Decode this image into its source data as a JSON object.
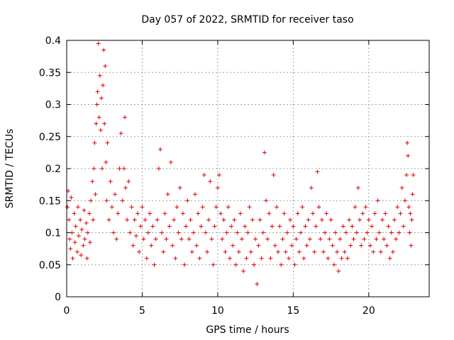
{
  "chart_data": {
    "type": "scatter",
    "title": "Day 057 of 2022, SRMTID for receiver taso",
    "xlabel": "GPS time / hours",
    "ylabel": "SRMTID / TECUs",
    "xlim": [
      0,
      24
    ],
    "ylim": [
      0,
      0.4
    ],
    "x_ticks": [
      "0",
      "5",
      "10",
      "15",
      "20"
    ],
    "y_ticks": [
      "0",
      "0.05",
      "0.1",
      "0.15",
      "0.2",
      "0.25",
      "0.3",
      "0.35",
      "0.4"
    ],
    "grid": true,
    "marker": "plus",
    "color": "#e00000",
    "series": [
      {
        "name": "SRMTID",
        "points": [
          [
            0.05,
            0.14
          ],
          [
            0.1,
            0.165
          ],
          [
            0.15,
            0.12
          ],
          [
            0.2,
            0.09
          ],
          [
            0.25,
            0.075
          ],
          [
            0.3,
            0.155
          ],
          [
            0.35,
            0.1
          ],
          [
            0.4,
            0.06
          ],
          [
            0.5,
            0.13
          ],
          [
            0.55,
            0.085
          ],
          [
            0.6,
            0.11
          ],
          [
            0.7,
            0.07
          ],
          [
            0.75,
            0.14
          ],
          [
            0.8,
            0.095
          ],
          [
            0.9,
            0.12
          ],
          [
            0.95,
            0.065
          ],
          [
            1.0,
            0.105
          ],
          [
            1.1,
            0.08
          ],
          [
            1.15,
            0.135
          ],
          [
            1.2,
            0.09
          ],
          [
            1.3,
            0.115
          ],
          [
            1.35,
            0.06
          ],
          [
            1.4,
            0.1
          ],
          [
            1.5,
            0.13
          ],
          [
            1.55,
            0.085
          ],
          [
            1.6,
            0.15
          ],
          [
            1.7,
            0.18
          ],
          [
            1.75,
            0.12
          ],
          [
            1.8,
            0.2
          ],
          [
            1.85,
            0.24
          ],
          [
            1.9,
            0.16
          ],
          [
            1.95,
            0.27
          ],
          [
            2.0,
            0.3
          ],
          [
            2.05,
            0.32
          ],
          [
            2.1,
            0.395
          ],
          [
            2.15,
            0.28
          ],
          [
            2.2,
            0.345
          ],
          [
            2.25,
            0.26
          ],
          [
            2.3,
            0.31
          ],
          [
            2.35,
            0.2
          ],
          [
            2.4,
            0.33
          ],
          [
            2.45,
            0.385
          ],
          [
            2.5,
            0.27
          ],
          [
            2.55,
            0.36
          ],
          [
            2.6,
            0.21
          ],
          [
            2.65,
            0.15
          ],
          [
            2.7,
            0.24
          ],
          [
            2.8,
            0.12
          ],
          [
            2.9,
            0.18
          ],
          [
            3.0,
            0.14
          ],
          [
            3.1,
            0.1
          ],
          [
            3.2,
            0.16
          ],
          [
            3.3,
            0.09
          ],
          [
            3.4,
            0.13
          ],
          [
            3.5,
            0.2
          ],
          [
            3.6,
            0.255
          ],
          [
            3.7,
            0.15
          ],
          [
            3.8,
            0.2
          ],
          [
            3.85,
            0.28
          ],
          [
            3.9,
            0.17
          ],
          [
            4.0,
            0.12
          ],
          [
            4.1,
            0.18
          ],
          [
            4.2,
            0.1
          ],
          [
            4.3,
            0.14
          ],
          [
            4.4,
            0.08
          ],
          [
            4.5,
            0.12
          ],
          [
            4.6,
            0.095
          ],
          [
            4.7,
            0.13
          ],
          [
            4.8,
            0.07
          ],
          [
            4.9,
            0.11
          ],
          [
            5.0,
            0.14
          ],
          [
            5.1,
            0.09
          ],
          [
            5.2,
            0.12
          ],
          [
            5.3,
            0.06
          ],
          [
            5.4,
            0.1
          ],
          [
            5.5,
            0.13
          ],
          [
            5.6,
            0.08
          ],
          [
            5.7,
            0.11
          ],
          [
            5.8,
            0.05
          ],
          [
            5.9,
            0.09
          ],
          [
            6.0,
            0.12
          ],
          [
            6.1,
            0.2
          ],
          [
            6.2,
            0.23
          ],
          [
            6.3,
            0.1
          ],
          [
            6.4,
            0.07
          ],
          [
            6.5,
            0.13
          ],
          [
            6.6,
            0.09
          ],
          [
            6.7,
            0.16
          ],
          [
            6.8,
            0.11
          ],
          [
            6.9,
            0.21
          ],
          [
            7.0,
            0.08
          ],
          [
            7.1,
            0.12
          ],
          [
            7.2,
            0.06
          ],
          [
            7.3,
            0.14
          ],
          [
            7.4,
            0.1
          ],
          [
            7.5,
            0.17
          ],
          [
            7.6,
            0.09
          ],
          [
            7.7,
            0.13
          ],
          [
            7.8,
            0.05
          ],
          [
            7.9,
            0.11
          ],
          [
            8.0,
            0.15
          ],
          [
            8.1,
            0.09
          ],
          [
            8.2,
            0.12
          ],
          [
            8.3,
            0.07
          ],
          [
            8.4,
            0.1
          ],
          [
            8.5,
            0.16
          ],
          [
            8.6,
            0.08
          ],
          [
            8.7,
            0.13
          ],
          [
            8.8,
            0.06
          ],
          [
            8.9,
            0.11
          ],
          [
            9.0,
            0.14
          ],
          [
            9.1,
            0.19
          ],
          [
            9.2,
            0.1
          ],
          [
            9.3,
            0.07
          ],
          [
            9.4,
            0.12
          ],
          [
            9.5,
            0.18
          ],
          [
            9.6,
            0.09
          ],
          [
            9.7,
            0.05
          ],
          [
            9.8,
            0.11
          ],
          [
            9.9,
            0.14
          ],
          [
            10.0,
            0.17
          ],
          [
            10.1,
            0.19
          ],
          [
            10.2,
            0.13
          ],
          [
            10.3,
            0.09
          ],
          [
            10.4,
            0.12
          ],
          [
            10.5,
            0.07
          ],
          [
            10.6,
            0.1
          ],
          [
            10.7,
            0.14
          ],
          [
            10.8,
            0.06
          ],
          [
            10.9,
            0.11
          ],
          [
            11.0,
            0.08
          ],
          [
            11.1,
            0.12
          ],
          [
            11.2,
            0.05
          ],
          [
            11.3,
            0.1
          ],
          [
            11.4,
            0.07
          ],
          [
            11.5,
            0.13
          ],
          [
            11.6,
            0.09
          ],
          [
            11.7,
            0.04
          ],
          [
            11.8,
            0.11
          ],
          [
            11.9,
            0.06
          ],
          [
            12.0,
            0.1
          ],
          [
            12.1,
            0.14
          ],
          [
            12.2,
            0.07
          ],
          [
            12.3,
            0.12
          ],
          [
            12.4,
            0.05
          ],
          [
            12.5,
            0.09
          ],
          [
            12.6,
            0.02
          ],
          [
            12.7,
            0.08
          ],
          [
            12.8,
            0.12
          ],
          [
            12.9,
            0.06
          ],
          [
            13.0,
            0.1
          ],
          [
            13.1,
            0.225
          ],
          [
            13.2,
            0.15
          ],
          [
            13.3,
            0.09
          ],
          [
            13.4,
            0.13
          ],
          [
            13.5,
            0.06
          ],
          [
            13.6,
            0.11
          ],
          [
            13.7,
            0.19
          ],
          [
            13.8,
            0.08
          ],
          [
            13.9,
            0.14
          ],
          [
            14.0,
            0.07
          ],
          [
            14.1,
            0.11
          ],
          [
            14.2,
            0.05
          ],
          [
            14.3,
            0.09
          ],
          [
            14.4,
            0.13
          ],
          [
            14.5,
            0.07
          ],
          [
            14.6,
            0.1
          ],
          [
            14.7,
            0.06
          ],
          [
            14.8,
            0.12
          ],
          [
            14.9,
            0.08
          ],
          [
            15.0,
            0.11
          ],
          [
            15.1,
            0.05
          ],
          [
            15.2,
            0.09
          ],
          [
            15.3,
            0.13
          ],
          [
            15.4,
            0.07
          ],
          [
            15.5,
            0.1
          ],
          [
            15.6,
            0.14
          ],
          [
            15.7,
            0.06
          ],
          [
            15.8,
            0.11
          ],
          [
            15.9,
            0.08
          ],
          [
            16.0,
            0.12
          ],
          [
            16.1,
            0.09
          ],
          [
            16.2,
            0.17
          ],
          [
            16.3,
            0.13
          ],
          [
            16.4,
            0.07
          ],
          [
            16.5,
            0.11
          ],
          [
            16.6,
            0.195
          ],
          [
            16.7,
            0.14
          ],
          [
            16.8,
            0.09
          ],
          [
            16.9,
            0.12
          ],
          [
            17.0,
            0.07
          ],
          [
            17.1,
            0.1
          ],
          [
            17.2,
            0.13
          ],
          [
            17.3,
            0.06
          ],
          [
            17.4,
            0.09
          ],
          [
            17.5,
            0.12
          ],
          [
            17.6,
            0.08
          ],
          [
            17.7,
            0.05
          ],
          [
            17.8,
            0.1
          ],
          [
            17.9,
            0.07
          ],
          [
            18.0,
            0.04
          ],
          [
            18.1,
            0.09
          ],
          [
            18.2,
            0.06
          ],
          [
            18.3,
            0.11
          ],
          [
            18.4,
            0.07
          ],
          [
            18.5,
            0.1
          ],
          [
            18.6,
            0.06
          ],
          [
            18.7,
            0.12
          ],
          [
            18.8,
            0.08
          ],
          [
            18.9,
            0.11
          ],
          [
            19.0,
            0.09
          ],
          [
            19.1,
            0.14
          ],
          [
            19.2,
            0.1
          ],
          [
            19.3,
            0.17
          ],
          [
            19.4,
            0.12
          ],
          [
            19.5,
            0.08
          ],
          [
            19.6,
            0.13
          ],
          [
            19.7,
            0.09
          ],
          [
            19.8,
            0.14
          ],
          [
            19.9,
            0.1
          ],
          [
            20.0,
            0.12
          ],
          [
            20.1,
            0.08
          ],
          [
            20.2,
            0.11
          ],
          [
            20.3,
            0.07
          ],
          [
            20.4,
            0.13
          ],
          [
            20.5,
            0.09
          ],
          [
            20.6,
            0.15
          ],
          [
            20.7,
            0.1
          ],
          [
            20.8,
            0.07
          ],
          [
            20.9,
            0.12
          ],
          [
            21.0,
            0.09
          ],
          [
            21.1,
            0.13
          ],
          [
            21.2,
            0.08
          ],
          [
            21.3,
            0.11
          ],
          [
            21.4,
            0.06
          ],
          [
            21.5,
            0.1
          ],
          [
            21.6,
            0.07
          ],
          [
            21.7,
            0.12
          ],
          [
            21.8,
            0.09
          ],
          [
            21.9,
            0.14
          ],
          [
            22.0,
            0.1
          ],
          [
            22.1,
            0.13
          ],
          [
            22.2,
            0.17
          ],
          [
            22.3,
            0.11
          ],
          [
            22.4,
            0.15
          ],
          [
            22.5,
            0.19
          ],
          [
            22.55,
            0.24
          ],
          [
            22.6,
            0.22
          ],
          [
            22.65,
            0.14
          ],
          [
            22.7,
            0.1
          ],
          [
            22.75,
            0.13
          ],
          [
            22.8,
            0.08
          ],
          [
            22.85,
            0.12
          ],
          [
            22.9,
            0.16
          ],
          [
            22.95,
            0.19
          ]
        ]
      }
    ]
  }
}
